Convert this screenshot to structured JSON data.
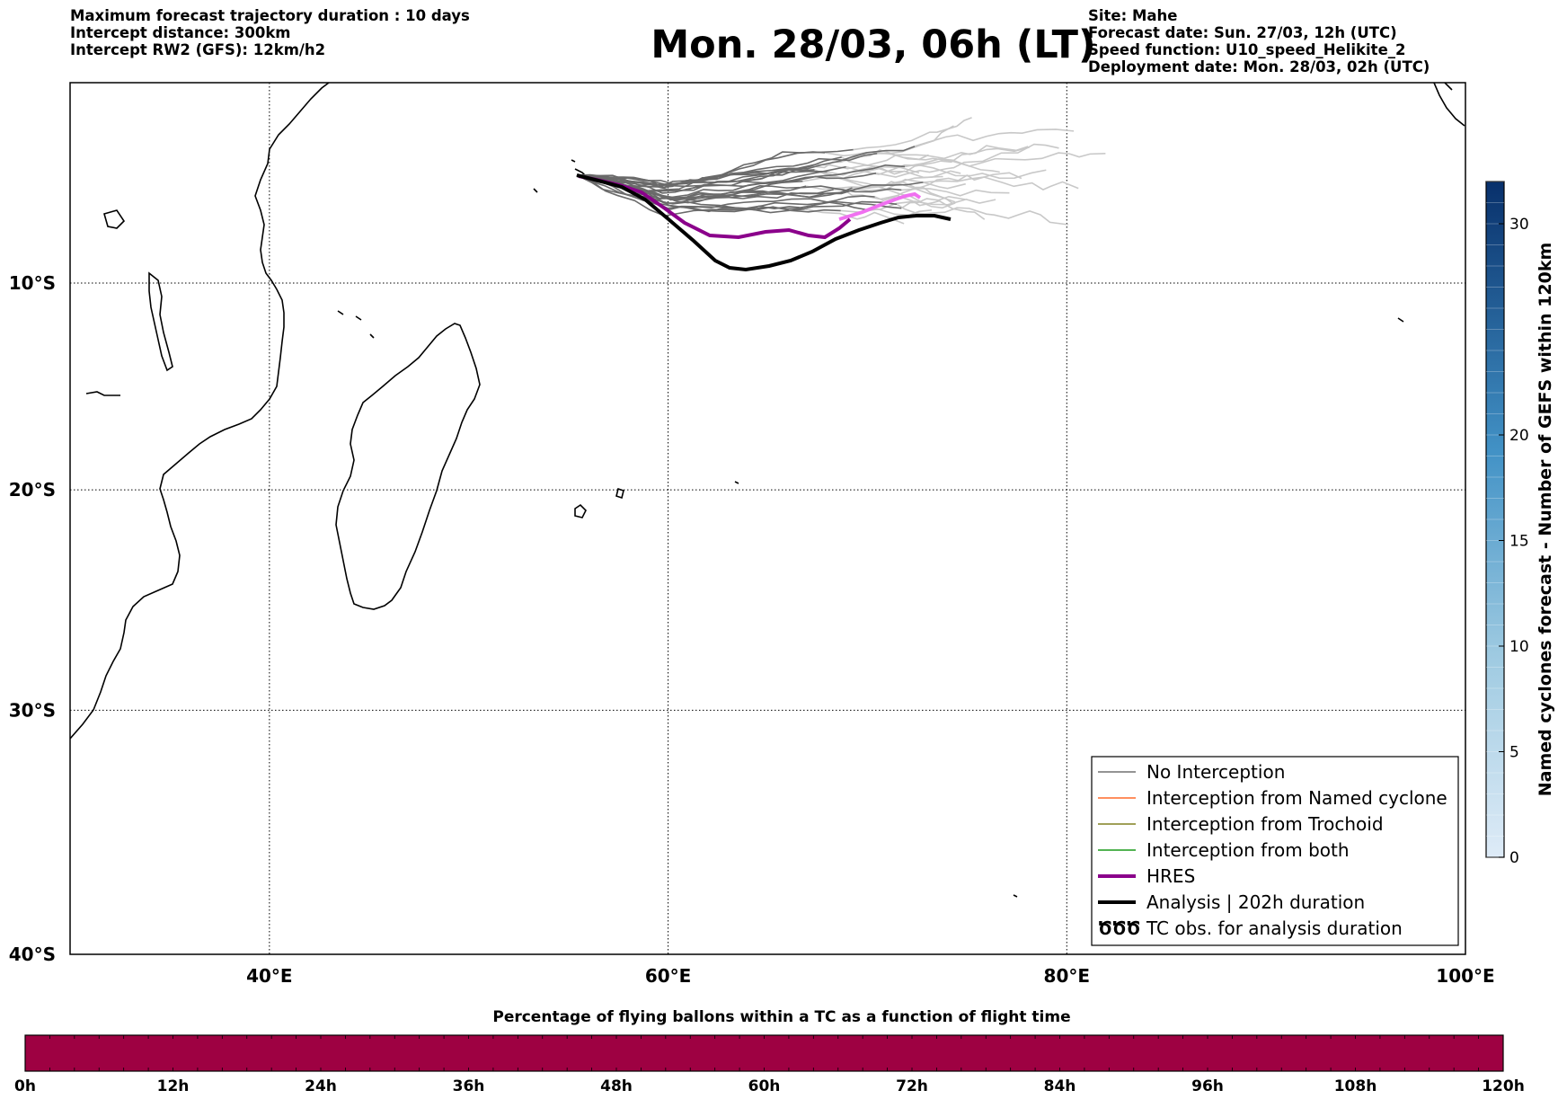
{
  "header": {
    "left_lines": [
      "Maximum forecast trajectory duration : 10 days",
      "Intercept distance: 300km",
      "Intercept RW2 (GFS):  12km/h2"
    ],
    "title": "Mon. 28/03, 06h (LT)",
    "right_lines": [
      "Site: Mahe",
      "Forecast date: Sun. 27/03, 12h (UTC)",
      "Speed function: U10_speed_Helikite_2",
      "Deployment date: Mon. 28/03, 02h (UTC)"
    ]
  },
  "map": {
    "lon_range": [
      30,
      100
    ],
    "lat_range": [
      -40,
      0
    ],
    "lon_ticks": [
      "40°E",
      "60°E",
      "80°E",
      "100°E"
    ],
    "lat_ticks": [
      "10°S",
      "20°S",
      "30°S",
      "40°S"
    ],
    "grid": true,
    "launch_site": "Mahe"
  },
  "legend": {
    "placement": "lower-right",
    "items": [
      {
        "label": "No Interception",
        "color": "#707070"
      },
      {
        "label": "Interception from Named cyclone",
        "color": "#ff6a2a"
      },
      {
        "label": "Interception from Trochoid",
        "color": "#808020"
      },
      {
        "label": "Interception from both",
        "color": "#1a9a1a"
      },
      {
        "label": "HRES",
        "color": "#8b008b"
      },
      {
        "label": "Analysis | 202h duration",
        "color": "#000000"
      },
      {
        "label": "TC obs. for analysis duration",
        "symbol": "ԾԾԾ"
      }
    ]
  },
  "colorbar": {
    "title": "Named cyclones forecast - Number of GEFS within 120km",
    "range": [
      0,
      32
    ],
    "ticks": [
      "0",
      "5",
      "10",
      "15",
      "20",
      "30"
    ],
    "color_low": "#deebf7",
    "color_high": "#08306b"
  },
  "time_bar": {
    "title": "Percentage of flying ballons within a TC as a function of flight time",
    "ticks": [
      "0h",
      "12h",
      "24h",
      "36h",
      "48h",
      "60h",
      "72h",
      "84h",
      "96h",
      "108h",
      "120h"
    ],
    "fill_color": "#9e0142",
    "percentage": 0
  }
}
